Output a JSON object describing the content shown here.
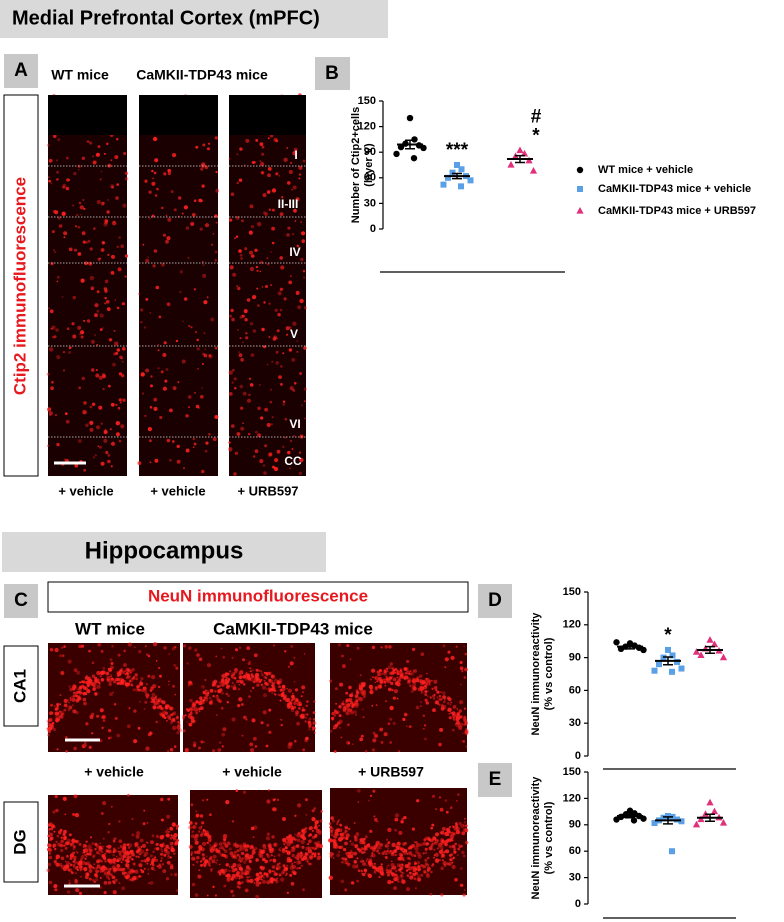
{
  "headings": {
    "mpfc": "Medial Prefrontal Cortex (mPFC)",
    "hippocampus": "Hippocampus"
  },
  "panel_labels": [
    "A",
    "B",
    "C",
    "D",
    "E"
  ],
  "panel_a": {
    "columns": [
      "WT mice",
      "CaMKII-TDP43 mice"
    ],
    "side_label": "Ctip2 immunofluorescence",
    "layers": [
      "I",
      "II-III",
      "IV",
      "V",
      "VI",
      "CC"
    ],
    "treatments": [
      "+ vehicle",
      "+ vehicle",
      "+ URB597"
    ]
  },
  "panel_c": {
    "title": "NeuN immunofluorescence",
    "columns": [
      "WT mice",
      "CaMKII-TDP43 mice"
    ],
    "rows": [
      "CA1",
      "DG"
    ],
    "treatments": [
      "+ vehicle",
      "+ vehicle",
      "+ URB597"
    ]
  },
  "chart_data": [
    {
      "type": "dotplot",
      "ylabel": [
        "Number of Ctip2+cells",
        "(layer V)"
      ],
      "ylim": [
        0,
        150
      ],
      "yticks": [
        0,
        30,
        60,
        90,
        120,
        150
      ],
      "legend": true,
      "series": [
        {
          "name": "WT mice + vehicle",
          "color": "#000000",
          "marker": "circle",
          "values": [
            130,
            105,
            100,
            98,
            96,
            95,
            88,
            83
          ],
          "mean": 99,
          "sem": 5
        },
        {
          "name": "CaMKII-TDP43 mice + vehicle",
          "color": "#5aa0e6",
          "marker": "square",
          "values": [
            75,
            70,
            66,
            62,
            60,
            57,
            52,
            50
          ],
          "mean": 62,
          "sem": 3,
          "annotation": [
            "***"
          ]
        },
        {
          "name": "CaMKII-TDP43 mice + URB597",
          "color": "#e0307a",
          "marker": "triangle",
          "values": [
            92,
            88,
            85,
            80,
            75,
            68
          ],
          "mean": 82,
          "sem": 4,
          "annotation": [
            "*",
            "#"
          ]
        }
      ]
    },
    {
      "type": "dotplot",
      "ylabel": [
        "NeuN immunoreactivity",
        "(% vs control)"
      ],
      "ylim": [
        0,
        150
      ],
      "yticks": [
        0,
        30,
        60,
        90,
        120,
        150
      ],
      "legend": false,
      "series": [
        {
          "color": "#000000",
          "marker": "circle",
          "values": [
            103,
            101,
            100,
            99,
            98,
            97,
            104
          ],
          "mean": 100,
          "sem": 2
        },
        {
          "color": "#5aa0e6",
          "marker": "square",
          "values": [
            97,
            92,
            90,
            86,
            84,
            80,
            78,
            77
          ],
          "mean": 87,
          "sem": 3.5,
          "annotation": [
            "*"
          ]
        },
        {
          "color": "#e0307a",
          "marker": "triangle",
          "values": [
            106,
            102,
            98,
            96,
            92,
            90,
            95
          ],
          "mean": 97,
          "sem": 3
        }
      ]
    },
    {
      "type": "dotplot",
      "ylabel": [
        "NeuN immunoreactivity",
        "(% vs control)"
      ],
      "ylim": [
        0,
        150
      ],
      "yticks": [
        0,
        30,
        60,
        90,
        120,
        150
      ],
      "legend": false,
      "series": [
        {
          "color": "#000000",
          "marker": "circle",
          "values": [
            106,
            103,
            101,
            100,
            99,
            97,
            96,
            95,
            102
          ],
          "mean": 100,
          "sem": 2
        },
        {
          "color": "#5aa0e6",
          "marker": "square",
          "values": [
            100,
            99,
            98,
            96,
            95,
            94,
            92,
            60
          ],
          "mean": 95,
          "sem": 4
        },
        {
          "color": "#e0307a",
          "marker": "triangle",
          "values": [
            115,
            105,
            102,
            98,
            96,
            92,
            90
          ],
          "mean": 98,
          "sem": 4
        }
      ]
    }
  ]
}
